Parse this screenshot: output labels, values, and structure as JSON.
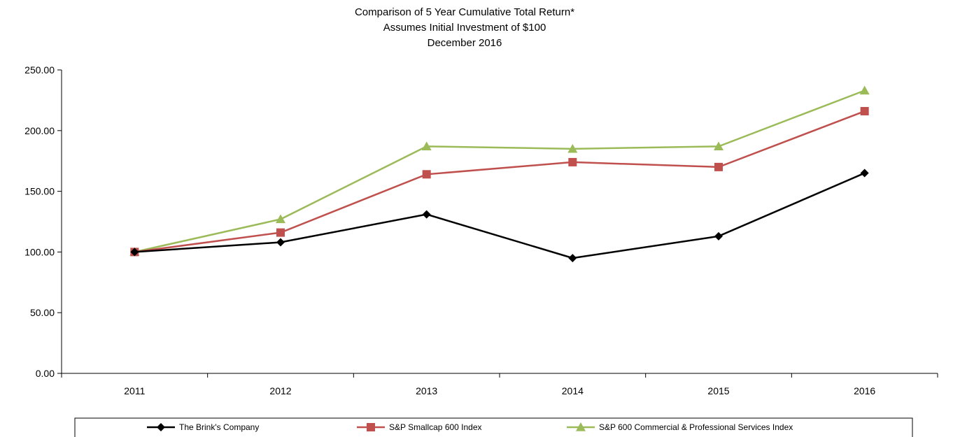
{
  "chart_data": {
    "type": "line",
    "title": "Comparison of 5 Year Cumulative Total Return*",
    "subtitle": [
      "Assumes Initial Investment of $100",
      "December 2016"
    ],
    "xlabel": "",
    "ylabel": "",
    "categories": [
      "2011",
      "2012",
      "2013",
      "2014",
      "2015",
      "2016"
    ],
    "ylim": [
      0,
      250
    ],
    "yticks": [
      "0.00",
      "50.00",
      "100.00",
      "150.00",
      "200.00",
      "250.00"
    ],
    "grid": false,
    "legend_position": "bottom",
    "series": [
      {
        "name": "The Brink's Company",
        "color": "#000000",
        "marker": "diamond",
        "values": [
          100,
          108,
          131,
          95,
          113,
          165
        ]
      },
      {
        "name": "S&P Smallcap 600 Index",
        "color": "#c0504d",
        "marker": "square",
        "values": [
          100,
          116,
          164,
          174,
          170,
          216
        ]
      },
      {
        "name": "S&P 600 Commercial & Professional Services Index",
        "color": "#9bbb59",
        "marker": "triangle",
        "values": [
          100,
          127,
          187,
          185,
          187,
          233
        ]
      }
    ]
  }
}
